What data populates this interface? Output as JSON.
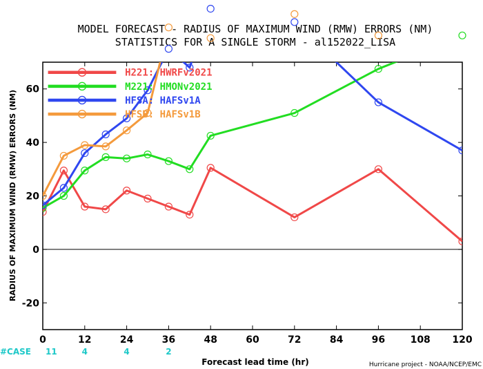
{
  "chart_data": {
    "type": "line",
    "title_line1": "MODEL FORECAST - RADIUS OF MAXIMUM WIND (RMW) ERRORS (NM)",
    "title_line2": "STATISTICS FOR A SINGLE STORM - al152022_LISA",
    "xlabel": "Forecast lead time (hr)",
    "ylabel": "RADIUS OF MAXIMUM WIND (RMW) ERRORS (NM)",
    "credit": "Hurricane project - NOAA/NCEP/EMC",
    "xlim": [
      0,
      120
    ],
    "ylim": [
      -30,
      70
    ],
    "xticks": [
      0,
      12,
      24,
      36,
      48,
      60,
      72,
      84,
      96,
      108,
      120
    ],
    "yticks": [
      -20,
      0,
      20,
      40,
      60
    ],
    "zero_line": 0,
    "grid": false,
    "legend_position": "top-left",
    "series": [
      {
        "name": "H221: HWRFv2021",
        "color": "#f04848",
        "x": [
          0,
          6,
          12,
          18,
          24,
          30,
          36,
          42,
          48,
          72,
          96,
          120
        ],
        "y": [
          14,
          29.5,
          16,
          15,
          22,
          19,
          16,
          13,
          30.5,
          12,
          30,
          3
        ]
      },
      {
        "name": "M221: HMONv2021",
        "color": "#22dd22",
        "x": [
          0,
          6,
          12,
          18,
          24,
          30,
          36,
          42,
          48,
          72,
          96,
          120
        ],
        "y": [
          15.5,
          20,
          29.5,
          34.5,
          34,
          35.5,
          33,
          30,
          42.5,
          51,
          67.5,
          80
        ]
      },
      {
        "name": "HFSA: HAFSv1A",
        "color": "#2f47f0",
        "x": [
          0,
          6,
          12,
          18,
          24,
          30,
          36,
          42,
          48,
          72,
          96,
          120
        ],
        "y": [
          16.5,
          23,
          36,
          43,
          49,
          59.5,
          75,
          68,
          90,
          85,
          55,
          37
        ]
      },
      {
        "name": "HFSB: HAFSv1B",
        "color": "#f49a3c",
        "x": [
          0,
          6,
          12,
          18,
          24,
          30,
          36,
          48,
          72,
          96
        ],
        "y": [
          20,
          35,
          39,
          38.5,
          44.5,
          51,
          83,
          79,
          88,
          80
        ]
      }
    ],
    "case_label": "#CASE",
    "case_color": "#1ec8c8",
    "case_counts": [
      {
        "x": 0,
        "n": "11"
      },
      {
        "x": 12,
        "n": "4"
      },
      {
        "x": 24,
        "n": "4"
      },
      {
        "x": 36,
        "n": "2"
      }
    ]
  }
}
